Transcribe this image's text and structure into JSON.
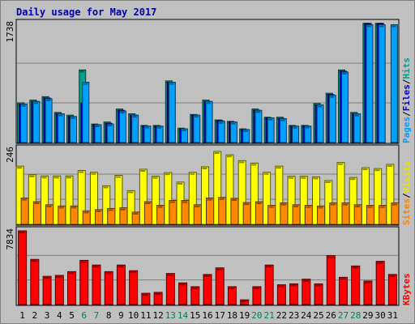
{
  "chart_data": {
    "type": "bar",
    "title": "Daily usage for May 2017",
    "categories": [
      "1",
      "2",
      "3",
      "4",
      "5",
      "6",
      "7",
      "8",
      "9",
      "10",
      "11",
      "12",
      "13",
      "14",
      "15",
      "16",
      "17",
      "18",
      "19",
      "20",
      "21",
      "22",
      "23",
      "24",
      "25",
      "26",
      "27",
      "28",
      "29",
      "30",
      "31"
    ],
    "weekend_days": [
      "6",
      "7",
      "13",
      "14",
      "20",
      "21",
      "27",
      "28"
    ],
    "panels": [
      {
        "name": "pages-files-hits",
        "ymax_label": "1738",
        "ymax": 1738,
        "legend": [
          {
            "label": "Pages",
            "color": "#00a0ff"
          },
          {
            "label": "/",
            "color": "#000000"
          },
          {
            "label": "Files",
            "color": "#0000cc"
          },
          {
            "label": "/",
            "color": "#000000"
          },
          {
            "label": "Hits",
            "color": "#00a08a"
          }
        ],
        "series": [
          {
            "name": "Hits",
            "color": "#00a08a",
            "values": [
              580,
              620,
              670,
              440,
              400,
              1060,
              270,
              300,
              490,
              420,
              250,
              250,
              900,
              210,
              410,
              620,
              330,
              310,
              200,
              490,
              370,
              370,
              250,
              250,
              570,
              720,
              1060,
              440,
              1740,
              1740,
              0
            ]
          },
          {
            "name": "Files",
            "color": "#0000cc",
            "values": [
              560,
              600,
              650,
              420,
              380,
              580,
              260,
              280,
              470,
              400,
              240,
              240,
              880,
              200,
              400,
              600,
              320,
              300,
              190,
              470,
              360,
              350,
              240,
              240,
              550,
              700,
              1040,
              420,
              1740,
              1740,
              0
            ]
          },
          {
            "name": "Pages",
            "color": "#00a0ff",
            "values": [
              560,
              600,
              640,
              420,
              380,
              880,
              260,
              270,
              460,
              400,
              240,
              240,
              880,
              200,
              400,
              600,
              310,
              300,
              190,
              470,
              360,
              350,
              240,
              240,
              550,
              690,
              1030,
              420,
              1720,
              1720,
              1720
            ]
          }
        ]
      },
      {
        "name": "sites-visits",
        "ymax_label": "246",
        "ymax": 246,
        "legend": [
          {
            "label": "Sites",
            "color": "#ff8000"
          },
          {
            "label": "/",
            "color": "#000000"
          },
          {
            "label": "Visits",
            "color": "#e6e600"
          }
        ],
        "series": [
          {
            "name": "Visits",
            "color": "#ffff00",
            "values": [
              190,
              162,
              158,
              158,
              158,
              176,
              170,
              126,
              160,
              110,
              180,
              157,
              169,
              138,
              170,
              188,
              238,
              227,
              208,
              200,
              170,
              190,
              157,
              157,
              155,
              143,
              202,
              153,
              185,
              182,
              196
            ]
          },
          {
            "name": "Sites",
            "color": "#ff8800",
            "values": [
              86,
              74,
              64,
              60,
              60,
              44,
              48,
              52,
              54,
              40,
              74,
              62,
              78,
              78,
              64,
              86,
              88,
              85,
              71,
              74,
              62,
              70,
              64,
              62,
              60,
              70,
              70,
              64,
              62,
              62,
              70
            ]
          }
        ]
      },
      {
        "name": "kbytes",
        "ymax_label": "7834",
        "ymax": 7834,
        "legend": [
          {
            "label": "KBytes",
            "color": "#ff0000"
          }
        ],
        "series": [
          {
            "name": "KBytes",
            "color": "#ff0000",
            "values": [
              7834,
              4800,
              3000,
              3100,
              3500,
              4700,
              4200,
              3500,
              4200,
              3600,
              1200,
              1300,
              3300,
              2300,
              1900,
              3200,
              3900,
              1900,
              500,
              1900,
              4200,
              2100,
              2200,
              2700,
              2200,
              5200,
              2900,
              4100,
              2500,
              4600,
              3200
            ]
          }
        ]
      }
    ]
  }
}
